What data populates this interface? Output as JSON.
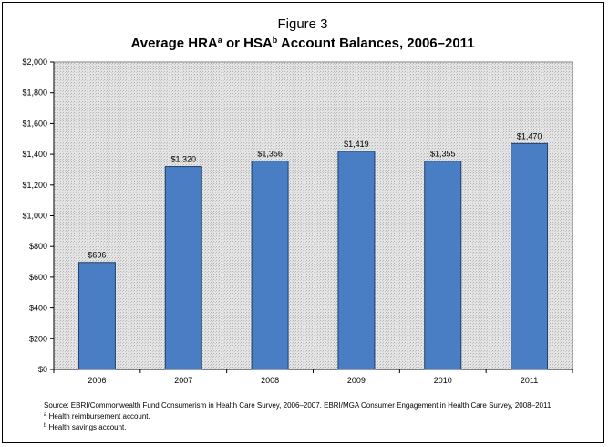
{
  "figure_label": "Figure 3",
  "title": {
    "part1": "Average HRA",
    "sup1": "a",
    "part2": " or HSA",
    "sup2": "b",
    "part3": " Account Balances, 2006–2011"
  },
  "colors": {
    "bar": "#4a7ec4",
    "bar_edge": "#1e3d6b",
    "plot_bg": "#e0e0e0"
  },
  "chart_data": {
    "type": "bar",
    "categories": [
      "2006",
      "2007",
      "2008",
      "2009",
      "2010",
      "2011"
    ],
    "values": [
      696,
      1320,
      1356,
      1419,
      1355,
      1470
    ],
    "value_labels": [
      "$696",
      "$1,320",
      "$1,356",
      "$1,419",
      "$1,355",
      "$1,470"
    ],
    "y_ticks": [
      0,
      200,
      400,
      600,
      800,
      1000,
      1200,
      1400,
      1600,
      1800,
      2000
    ],
    "y_tick_labels": [
      "$0",
      "$200",
      "$400",
      "$600",
      "$800",
      "$1,000",
      "$1,200",
      "$1,400",
      "$1,600",
      "$1,800",
      "$2,000"
    ],
    "ylim": [
      0,
      2000
    ],
    "grid": false
  },
  "notes": {
    "source": "Source: EBRI/Commonwealth Fund Consumerism in Health Care Survey, 2006–2007. EBRI/MGA Consumer Engagement in Health Care Survey, 2008–2011.",
    "footnote_a_mark": "a",
    "footnote_a_text": " Health reimbursement account.",
    "footnote_b_mark": "b",
    "footnote_b_text": " Health savings account."
  }
}
